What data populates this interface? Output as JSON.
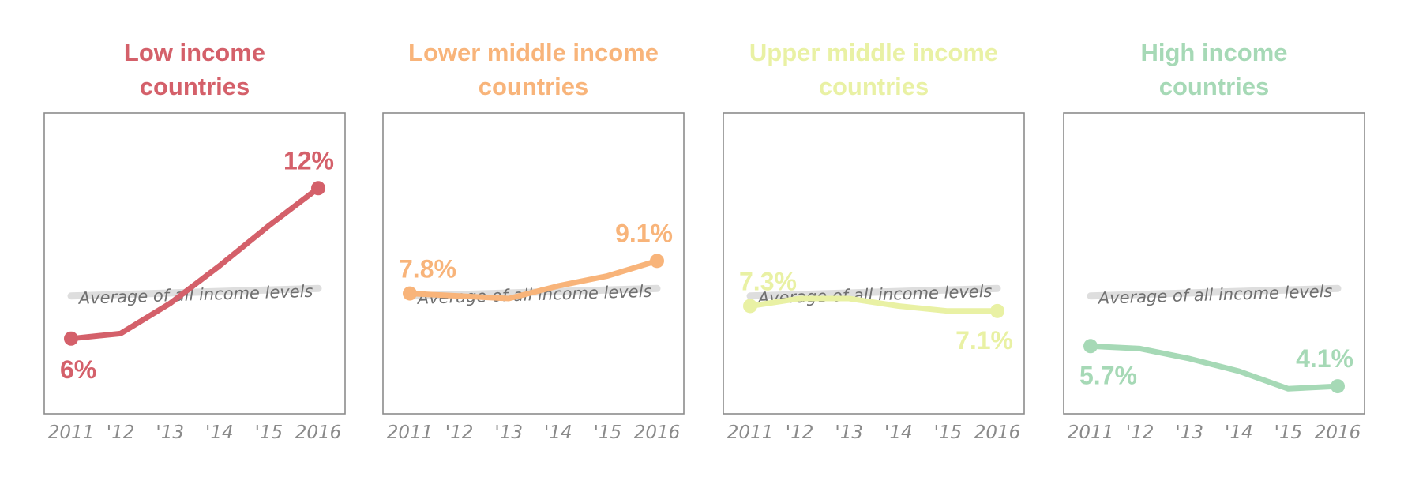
{
  "chart_data": [
    {
      "type": "line",
      "title": "Low income countries",
      "title_lines": [
        "Low income",
        "countries"
      ],
      "color": "#d4606a",
      "x": [
        2011,
        2012,
        2013,
        2014,
        2015,
        2016
      ],
      "tick_labels": [
        "2011",
        "'12",
        "'13",
        "'14",
        "'15",
        "2016"
      ],
      "values": [
        6.0,
        6.2,
        7.4,
        8.9,
        10.5,
        12.0
      ],
      "start_label": "6%",
      "end_label": "12%",
      "average_label": "Average of all income levels",
      "average_values": [
        7.7,
        8.0
      ],
      "ylim": [
        3.0,
        15.0
      ],
      "grid": false
    },
    {
      "type": "line",
      "title": "Lower middle income countries",
      "title_lines": [
        "Lower middle income",
        "countries"
      ],
      "color": "#f8b47a",
      "x": [
        2011,
        2012,
        2013,
        2014,
        2015,
        2016
      ],
      "tick_labels": [
        "2011",
        "'12",
        "'13",
        "'14",
        "'15",
        "2016"
      ],
      "values": [
        7.8,
        7.7,
        7.6,
        8.1,
        8.5,
        9.1
      ],
      "start_label": "7.8%",
      "end_label": "9.1%",
      "average_label": "Average of all income levels",
      "average_values": [
        7.7,
        8.0
      ],
      "ylim": [
        3.0,
        15.0
      ],
      "grid": false
    },
    {
      "type": "line",
      "title": "Upper middle income countries",
      "title_lines": [
        "Upper middle income",
        "countries"
      ],
      "color": "#e9f1a4",
      "x": [
        2011,
        2012,
        2013,
        2014,
        2015,
        2016
      ],
      "tick_labels": [
        "2011",
        "'12",
        "'13",
        "'14",
        "'15",
        "2016"
      ],
      "values": [
        7.3,
        7.6,
        7.6,
        7.3,
        7.1,
        7.1
      ],
      "start_label": "7.3%",
      "end_label": "7.1%",
      "average_label": "Average of all income levels",
      "average_values": [
        7.7,
        8.0
      ],
      "ylim": [
        3.0,
        15.0
      ],
      "grid": false
    },
    {
      "type": "line",
      "title": "High income countries",
      "title_lines": [
        "High income",
        "countries"
      ],
      "color": "#a6d9b6",
      "x": [
        2011,
        2012,
        2013,
        2014,
        2015,
        2016
      ],
      "tick_labels": [
        "2011",
        "'12",
        "'13",
        "'14",
        "'15",
        "2016"
      ],
      "values": [
        5.7,
        5.6,
        5.2,
        4.7,
        4.0,
        4.1
      ],
      "start_label": "5.7%",
      "end_label": "4.1%",
      "average_label": "Average of all income levels",
      "average_values": [
        7.7,
        8.0
      ],
      "ylim": [
        3.0,
        15.0
      ],
      "grid": false
    }
  ]
}
